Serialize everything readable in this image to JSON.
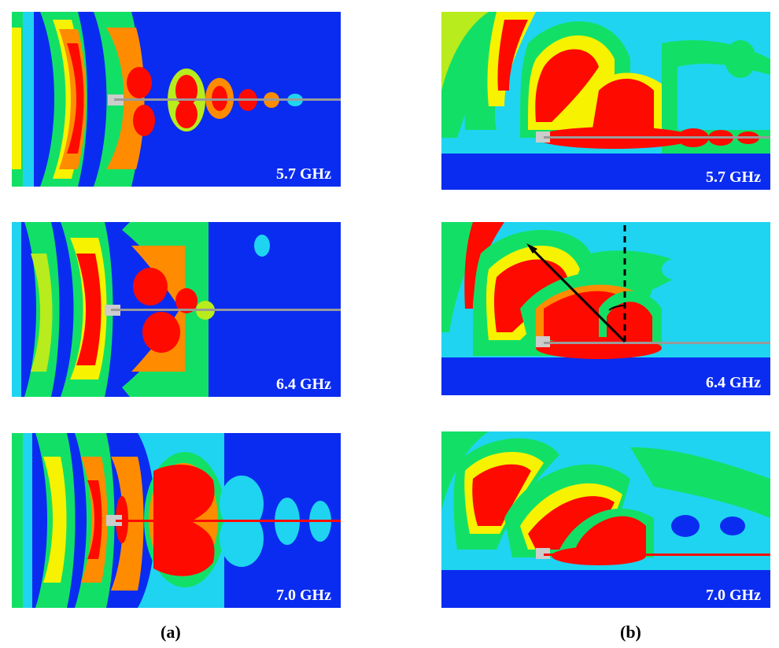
{
  "colors": {
    "background": "#0a2cf0",
    "cyan": "#1fd4f0",
    "lightcyan": "#5ff4ff",
    "green": "#12e066",
    "yellowgreen": "#b8ec1c",
    "yellow": "#f6f200",
    "orange": "#ff8c00",
    "red": "#ff0a00",
    "line": "#9a9a9a",
    "text": "#ffffff"
  },
  "column_a": {
    "caption": "(a)",
    "panels": [
      {
        "frequency": "5.7 GHz"
      },
      {
        "frequency": "6.4 GHz"
      },
      {
        "frequency": "7.0 GHz"
      }
    ]
  },
  "column_b": {
    "caption": "(b)",
    "panels": [
      {
        "frequency": "5.7 GHz"
      },
      {
        "frequency": "6.4 GHz"
      },
      {
        "frequency": "7.0 GHz"
      }
    ]
  }
}
